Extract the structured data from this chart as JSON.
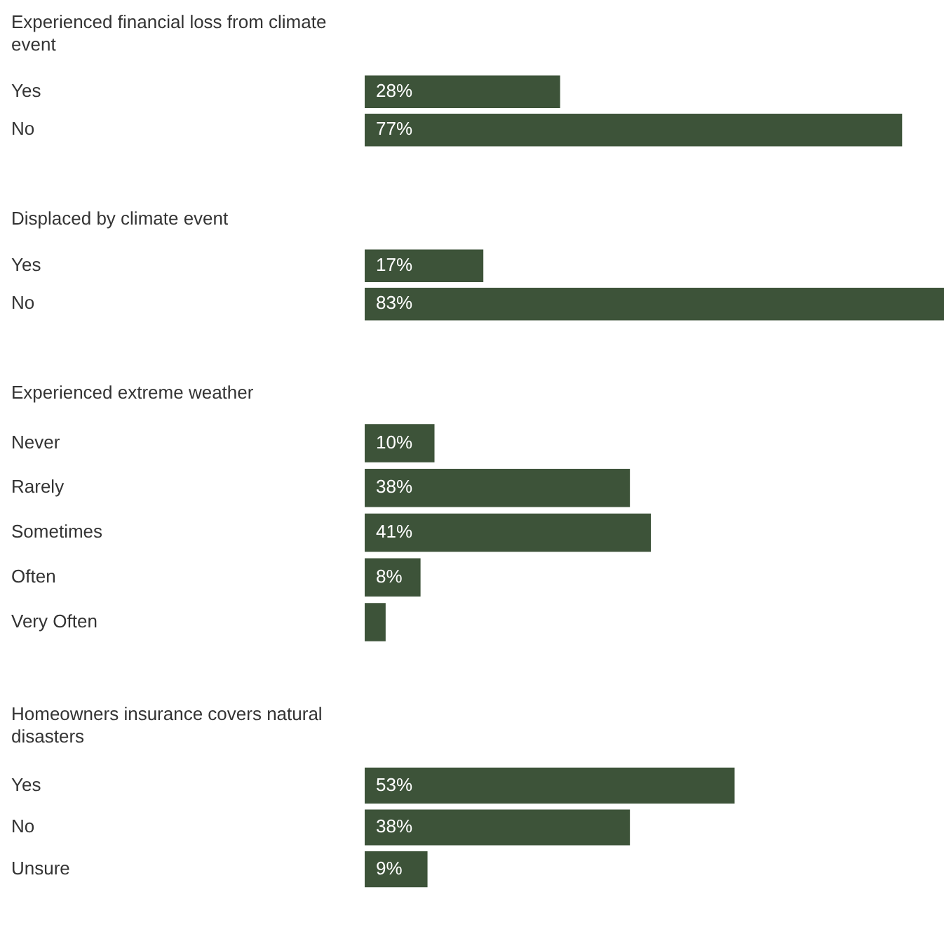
{
  "chart_data": [
    {
      "type": "bar",
      "orientation": "horizontal",
      "title": "Experienced financial loss from climate event",
      "categories": [
        "Yes",
        "No"
      ],
      "values": [
        28,
        77
      ],
      "value_labels": [
        "28%",
        "77%"
      ],
      "color": "#3d5339",
      "xlim": [
        0,
        83
      ],
      "tick_labels": "y"
    },
    {
      "type": "bar",
      "orientation": "horizontal",
      "title": "Displaced by climate event",
      "categories": [
        "Yes",
        "No"
      ],
      "values": [
        17,
        83
      ],
      "value_labels": [
        "17%",
        "83%"
      ],
      "color": "#3d5339",
      "xlim": [
        0,
        83
      ],
      "tick_labels": "y"
    },
    {
      "type": "bar",
      "orientation": "horizontal",
      "title": "Experienced extreme weather",
      "categories": [
        "Never",
        "Rarely",
        "Sometimes",
        "Often",
        "Very Often"
      ],
      "values": [
        10,
        38,
        41,
        8,
        3
      ],
      "value_labels": [
        "10%",
        "38%",
        "41%",
        "8%",
        null
      ],
      "color": "#3d5339",
      "xlim": [
        0,
        83
      ],
      "tick_labels": "y"
    },
    {
      "type": "bar",
      "orientation": "horizontal",
      "title": "Homeowners insurance covers natural disasters",
      "categories": [
        "Yes",
        "No",
        "Unsure"
      ],
      "values": [
        53,
        38,
        9
      ],
      "value_labels": [
        "53%",
        "38%",
        "9%"
      ],
      "color": "#3d5339",
      "xlim": [
        0,
        83
      ],
      "tick_labels": "y"
    }
  ]
}
